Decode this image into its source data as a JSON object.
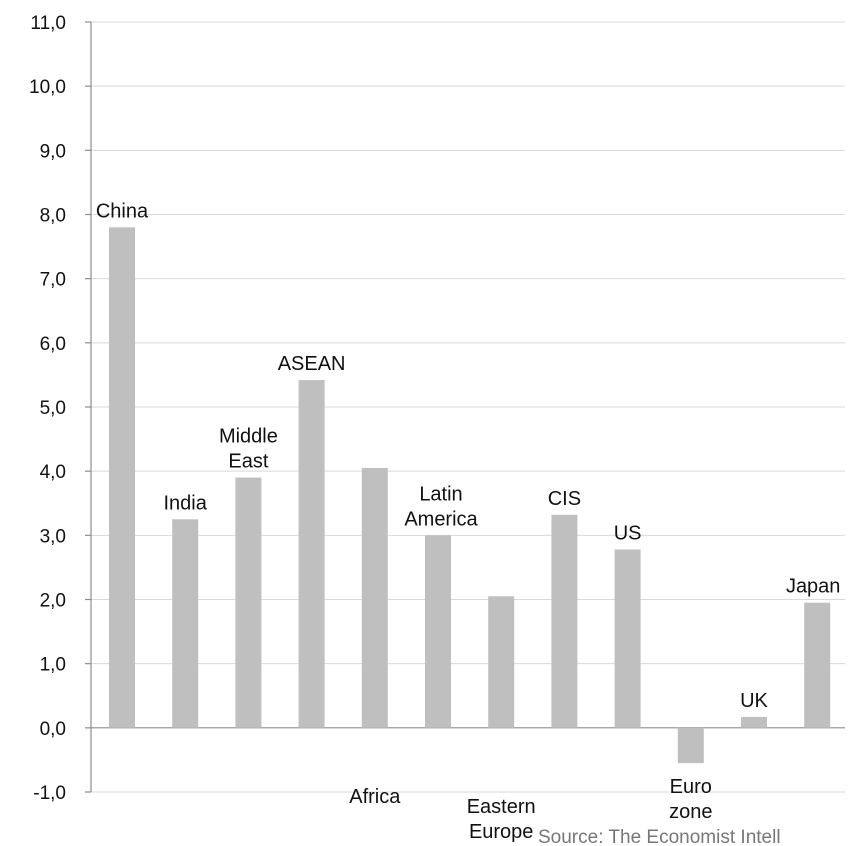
{
  "chart_data": {
    "type": "bar",
    "categories": [
      "China",
      "India",
      "Middle East",
      "ASEAN",
      "Africa",
      "Latin America",
      "Eastern Europe",
      "CIS",
      "US",
      "Euro zone",
      "UK",
      "Japan"
    ],
    "values": [
      7.8,
      3.25,
      3.9,
      5.42,
      4.05,
      3.0,
      2.05,
      3.32,
      2.78,
      -0.55,
      0.17,
      1.95
    ],
    "label_lines": [
      [
        "China"
      ],
      [
        "India"
      ],
      [
        "Middle",
        "East"
      ],
      [
        "ASEAN"
      ],
      [
        "Africa"
      ],
      [
        "Latin",
        "America"
      ],
      [
        "Eastern",
        "Europe"
      ],
      [
        "CIS"
      ],
      [
        "US"
      ],
      [
        "Euro",
        "zone"
      ],
      [
        "UK"
      ],
      [
        "Japan"
      ]
    ],
    "ylim": [
      -1.0,
      11.0
    ],
    "yticks": [
      "11,0",
      "10,0",
      "9,0",
      "8,0",
      "7,0",
      "6,0",
      "5,0",
      "4,0",
      "3,0",
      "2,0",
      "1,0",
      "0,0",
      "-1,0"
    ],
    "ytick_values": [
      11,
      10,
      9,
      8,
      7,
      6,
      5,
      4,
      3,
      2,
      1,
      0,
      -1
    ],
    "grid": true,
    "bar_color": "#bfbfbf",
    "grid_color": "#d9d9d9",
    "xlabel": "",
    "ylabel": "",
    "title": ""
  },
  "source_note": "Source: The Economist Intell"
}
